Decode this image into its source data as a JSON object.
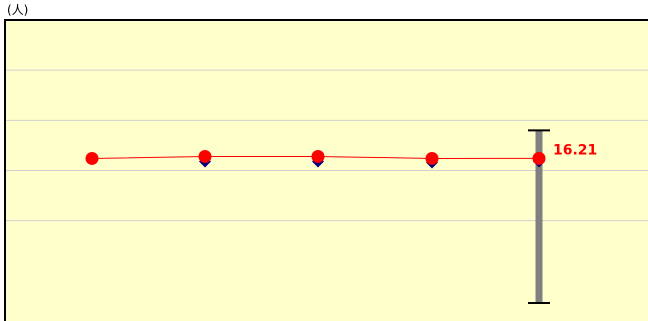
{
  "chart_data": {
    "type": "line",
    "unit_label": "(人)",
    "grid": true,
    "colors": {
      "plot_background": "#FFFFCC",
      "gridline": "#D0D0D0",
      "frame": "#000000",
      "series_main": "#FF0000",
      "series_secondary": "#000080",
      "range_bar": "#808080",
      "range_cap": "#000000",
      "label": "#FF0000"
    },
    "y_range": [
      0,
      30
    ],
    "y_gridlines": [
      10,
      15,
      20,
      25
    ],
    "x_count": 5,
    "series": [
      {
        "marker": "circle",
        "color": "#FF0000",
        "values": [
          16.2,
          16.4,
          16.4,
          16.2,
          16.21
        ]
      },
      {
        "marker": "diamond",
        "color": "#000080",
        "values": [
          null,
          15.9,
          15.9,
          15.8,
          15.9
        ]
      }
    ],
    "range_bar": {
      "x_index": 4,
      "high": 19.0,
      "low": 1.8
    },
    "data_labels": [
      {
        "series": 0,
        "x_index": 4,
        "text": "16.21"
      }
    ]
  }
}
